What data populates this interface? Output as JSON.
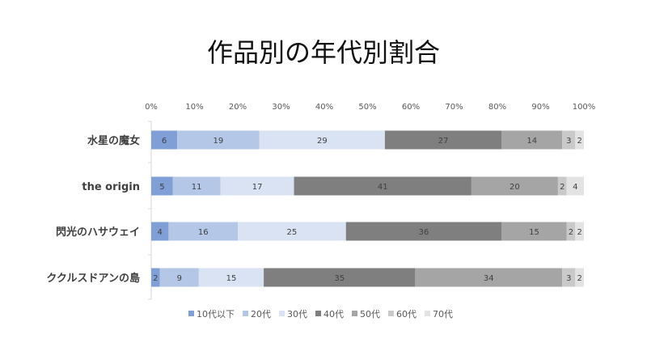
{
  "chart_data": {
    "type": "bar",
    "orientation": "horizontal",
    "stacked": "percent",
    "title": "作品別の年代別割合",
    "categories": [
      "水星の魔女",
      "the origin",
      "閃光のハサウェイ",
      "ククルスドアンの島"
    ],
    "series": [
      {
        "name": "10代以下",
        "color": "#7f9fd6",
        "values": [
          6,
          5,
          4,
          2
        ]
      },
      {
        "name": "20代",
        "color": "#b4c7e7",
        "values": [
          19,
          11,
          16,
          9
        ]
      },
      {
        "name": "30代",
        "color": "#dae3f3",
        "values": [
          29,
          17,
          25,
          15
        ]
      },
      {
        "name": "40代",
        "color": "#7f7f7f",
        "values": [
          27,
          41,
          36,
          35
        ]
      },
      {
        "name": "50代",
        "color": "#a5a5a5",
        "values": [
          14,
          20,
          15,
          34
        ]
      },
      {
        "name": "60代",
        "color": "#c9c9c9",
        "values": [
          3,
          2,
          2,
          3
        ]
      },
      {
        "name": "70代",
        "color": "#e3e3e3",
        "values": [
          2,
          4,
          2,
          2
        ]
      }
    ],
    "x_ticks": [
      "0%",
      "10%",
      "20%",
      "30%",
      "40%",
      "50%",
      "60%",
      "70%",
      "80%",
      "90%",
      "100%"
    ],
    "xlim": [
      0,
      100
    ],
    "grid": false,
    "legend_position": "bottom"
  }
}
